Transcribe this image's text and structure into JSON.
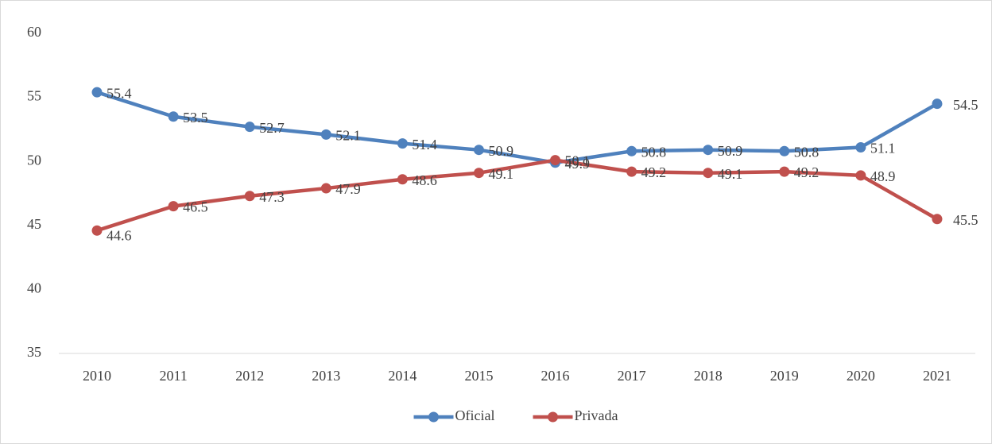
{
  "chart_data": {
    "type": "line",
    "categories": [
      "2010",
      "2011",
      "2012",
      "2013",
      "2014",
      "2015",
      "2016",
      "2017",
      "2018",
      "2019",
      "2020",
      "2021"
    ],
    "series": [
      {
        "name": "Oficial",
        "color": "#4f81bd",
        "values": [
          55.4,
          53.5,
          52.7,
          52.1,
          51.4,
          50.9,
          49.9,
          50.8,
          50.9,
          50.8,
          51.1,
          54.5
        ]
      },
      {
        "name": "Privada",
        "color": "#c0504d",
        "values": [
          44.6,
          46.5,
          47.3,
          47.9,
          48.6,
          49.1,
          50.1,
          49.2,
          49.1,
          49.2,
          48.9,
          45.5
        ]
      }
    ],
    "ylim": [
      35,
      60
    ],
    "yticks": [
      35,
      40,
      45,
      50,
      55,
      60
    ],
    "grid": false,
    "legend": "bottom"
  }
}
